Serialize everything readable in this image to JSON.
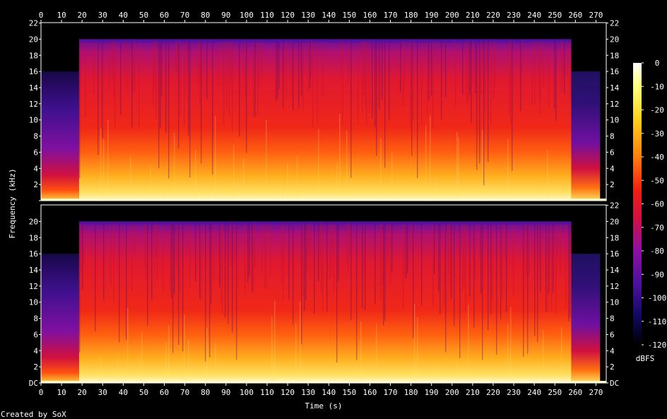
{
  "chart_data": {
    "type": "heatmap",
    "xlabel": "Time (s)",
    "ylabel": "Frequency (kHz)",
    "xlim": [
      0,
      275
    ],
    "ylim": [
      0,
      22.05
    ],
    "x_ticks": [
      "0",
      "10",
      "20",
      "30",
      "40",
      "50",
      "60",
      "70",
      "80",
      "90",
      "100",
      "110",
      "120",
      "130",
      "140",
      "150",
      "160",
      "170",
      "180",
      "190",
      "200",
      "210",
      "220",
      "230",
      "240",
      "250",
      "260",
      "270"
    ],
    "y_ticks_top_left": [
      "",
      "2",
      "4",
      "6",
      "8",
      "10",
      "12",
      "14",
      "16",
      "18",
      "20",
      "22"
    ],
    "y_ticks_bottom_left": [
      "DC",
      "2",
      "4",
      "6",
      "8",
      "10",
      "12",
      "14",
      "16",
      "18",
      "20"
    ],
    "y_ticks_top_right": [
      "2",
      "4",
      "6",
      "8",
      "10",
      "12",
      "14",
      "16",
      "18",
      "20",
      "22"
    ],
    "y_ticks_bottom_right": [
      "DC",
      "2",
      "4",
      "6",
      "8",
      "10",
      "12",
      "14",
      "16",
      "18",
      "20",
      "22"
    ],
    "channels": 2,
    "colorbar": {
      "label": "dBFS",
      "ticks": [
        "0",
        "-10",
        "-20",
        "-30",
        "-40",
        "-50",
        "-60",
        "-70",
        "-80",
        "-90",
        "-100",
        "-110",
        "-120"
      ],
      "range": [
        -120,
        0
      ]
    },
    "segments": [
      {
        "start_s": 0,
        "end_s": 18.5,
        "cutoff_khz": 16,
        "description": "intro, dark purple upper band"
      },
      {
        "start_s": 18.5,
        "end_s": 258,
        "cutoff_khz": 20,
        "description": "main body, red/orange/yellow"
      },
      {
        "start_s": 258,
        "end_s": 272,
        "cutoff_khz": 16,
        "description": "outro fade"
      }
    ],
    "footer": "Created by SoX"
  }
}
